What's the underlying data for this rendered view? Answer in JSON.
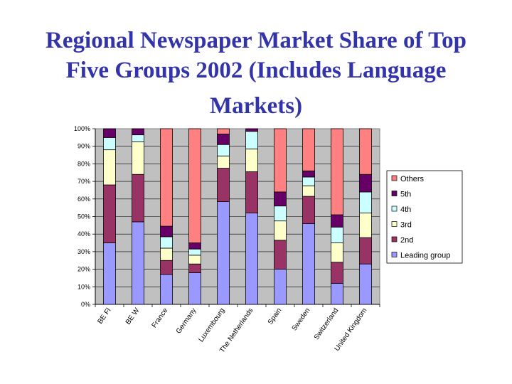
{
  "slide": {
    "title_lines": [
      "Regional Newspaper Market Share of Top",
      "Five Groups 2002 (Includes Language",
      "Markets)"
    ]
  },
  "chart_data": {
    "type": "bar",
    "stacked": true,
    "percent": true,
    "categories": [
      "BE Fl",
      "BE W",
      "France",
      "Germany",
      "Luxembourg",
      "The Netherlands",
      "Spain",
      "Sweden",
      "Switzerland",
      "United Kingdom"
    ],
    "y_ticks": [
      "0%",
      "10%",
      "20%",
      "30%",
      "40%",
      "50%",
      "60%",
      "70%",
      "80%",
      "90%",
      "100%"
    ],
    "ylim": [
      0,
      100
    ],
    "grid": true,
    "legend_position": "right",
    "series": [
      {
        "name": "Leading group",
        "color": "#9999ff",
        "values": [
          35,
          47,
          17,
          18,
          58.5,
          52,
          20,
          46,
          12,
          23
        ]
      },
      {
        "name": "2nd",
        "color": "#993366",
        "values": [
          33,
          27,
          8,
          5,
          19,
          23.5,
          16.5,
          15.5,
          12,
          15
        ]
      },
      {
        "name": "3rd",
        "color": "#ffffcc",
        "values": [
          20,
          18.5,
          7,
          5,
          7,
          13,
          11,
          6,
          11,
          14
        ]
      },
      {
        "name": "4th",
        "color": "#ccffff",
        "values": [
          7,
          4,
          6.5,
          3.5,
          6.5,
          10,
          8.5,
          5,
          9,
          12
        ]
      },
      {
        "name": "5th",
        "color": "#660066",
        "values": [
          5,
          3.5,
          6,
          3.5,
          6,
          1.5,
          8,
          3.5,
          7,
          10
        ]
      },
      {
        "name": "Others",
        "color": "#ff8080",
        "values": [
          0,
          0,
          55.5,
          65,
          3,
          0,
          36,
          24,
          49,
          26
        ]
      }
    ]
  }
}
